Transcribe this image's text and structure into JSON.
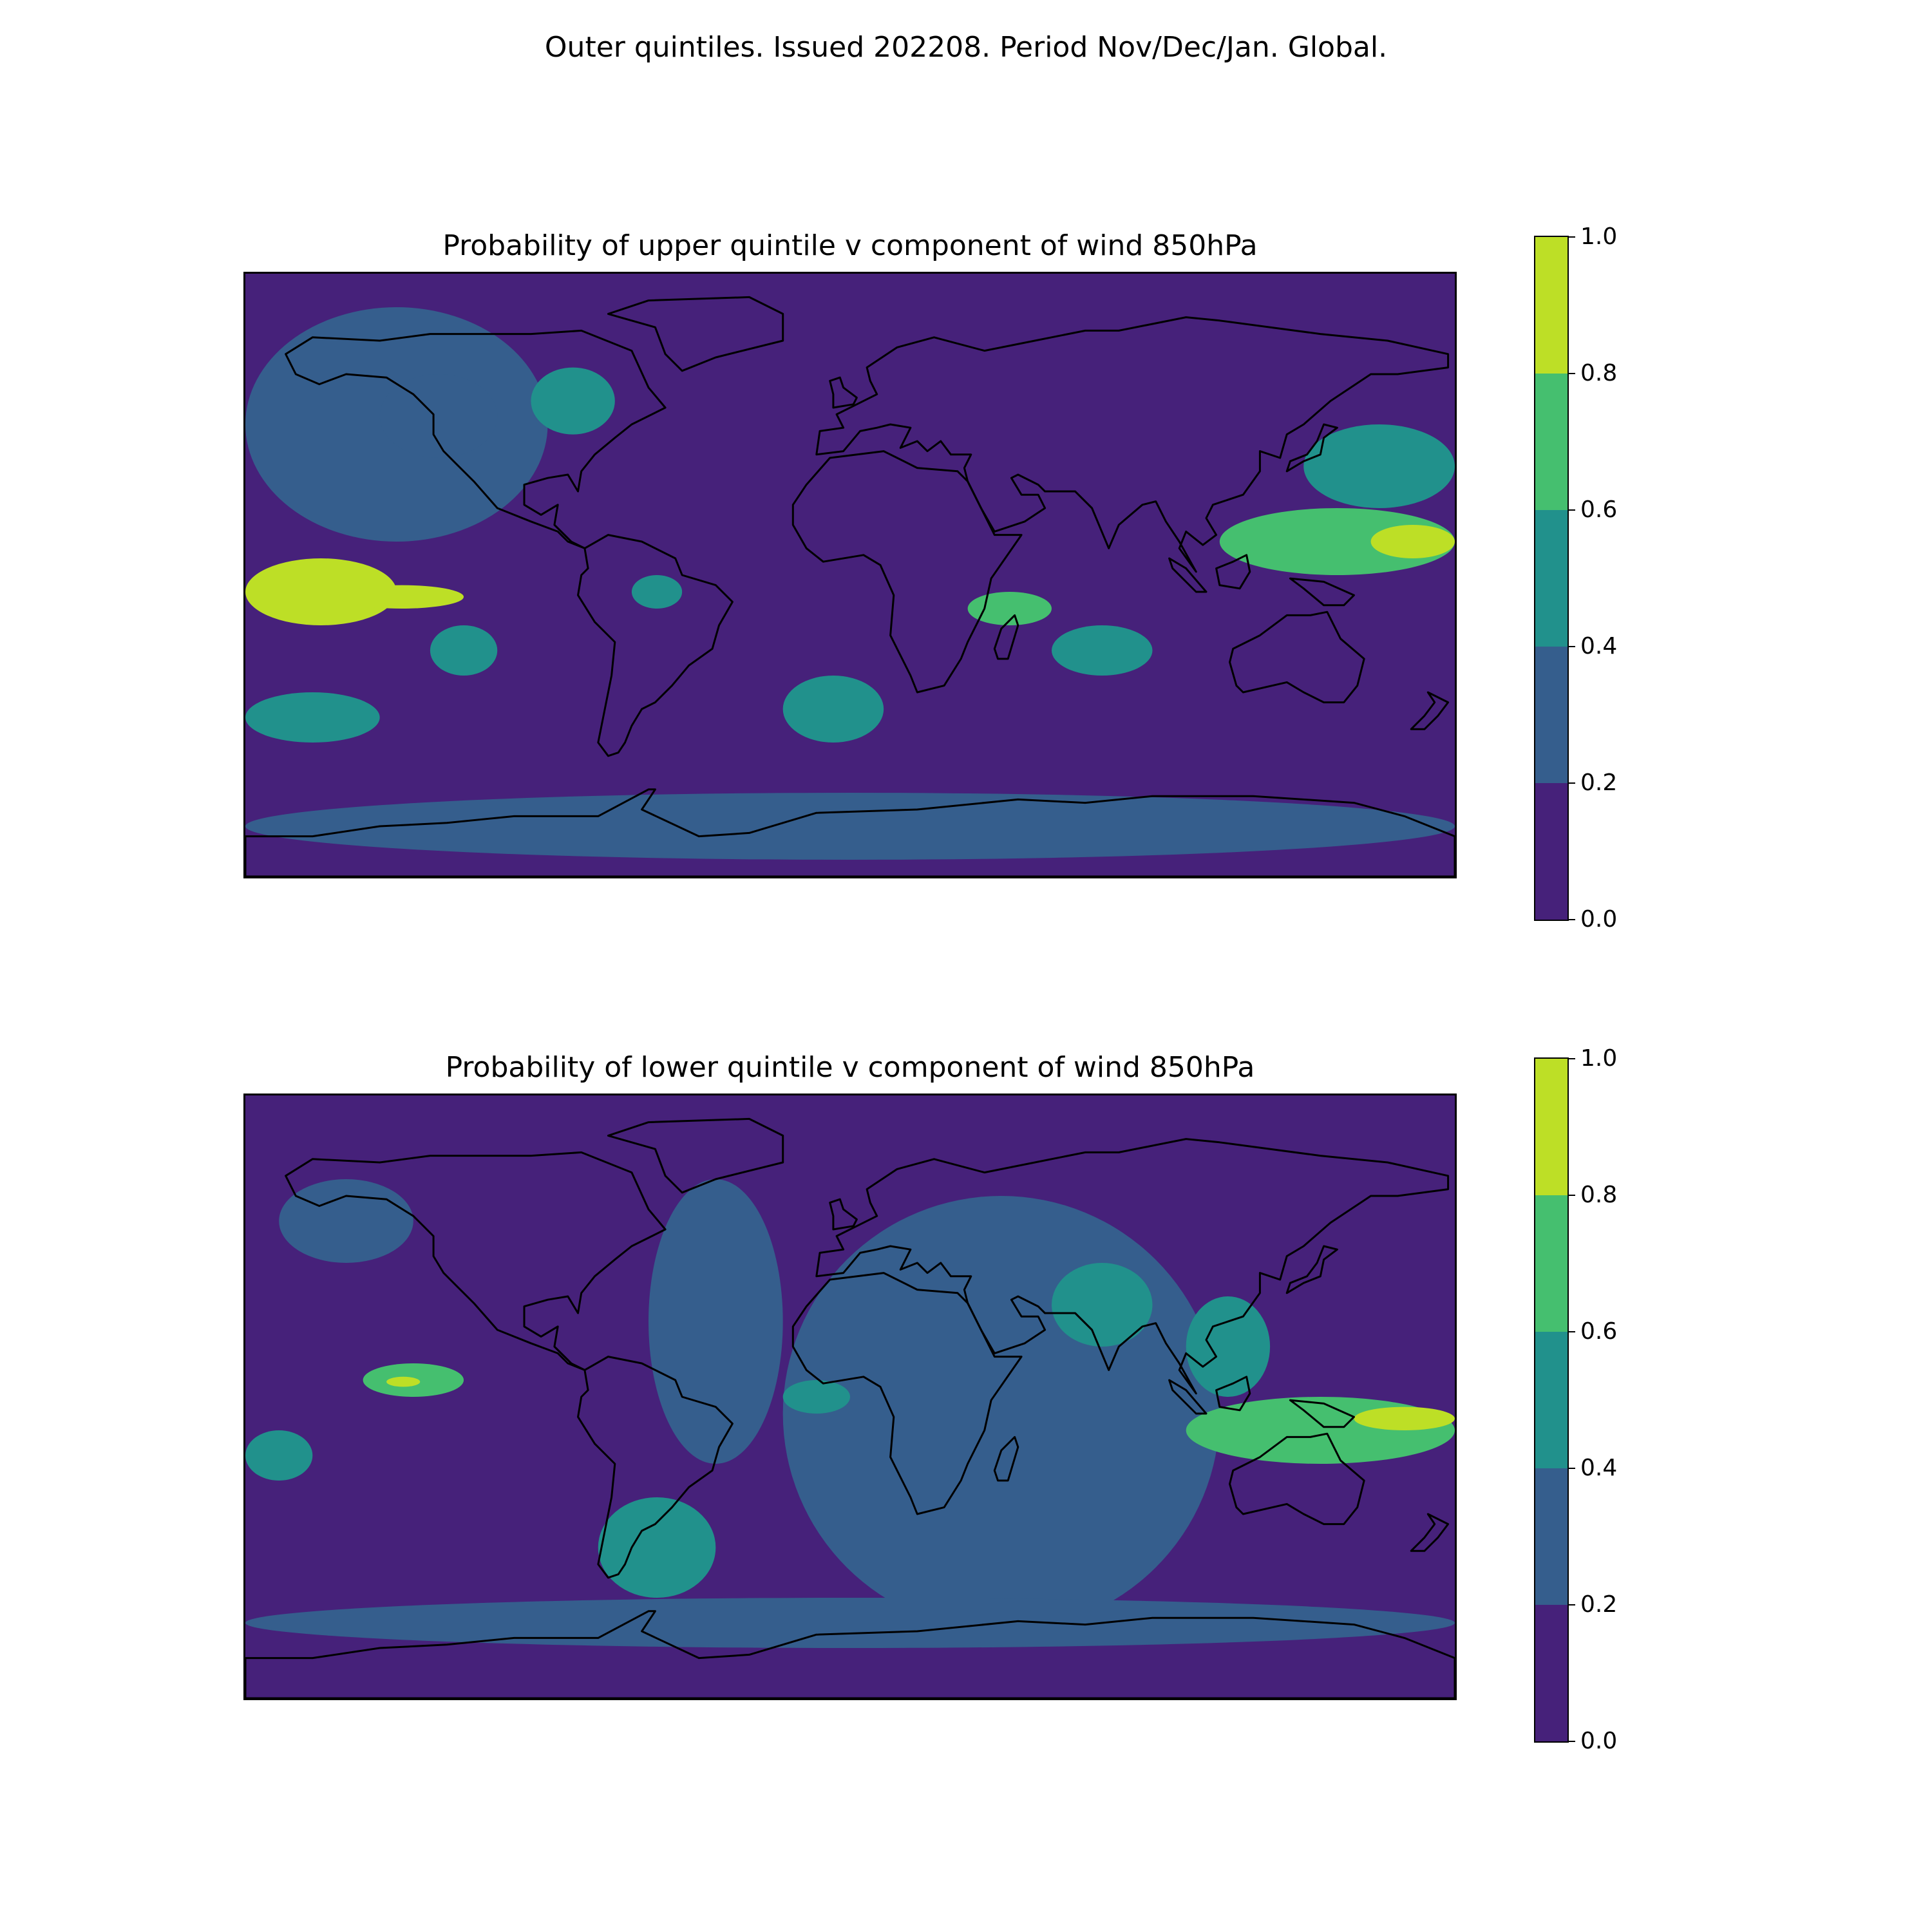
{
  "figure": {
    "suptitle": "Outer quintiles. Issued 202208. Period Nov/Dec/Jan. Global."
  },
  "colors": {
    "levels": [
      "#46217a",
      "#355e8d",
      "#21918c",
      "#45bf6f",
      "#bddf26"
    ],
    "land_outline": "#000000"
  },
  "colorbar": {
    "ticks": [
      "0.0",
      "0.2",
      "0.4",
      "0.6",
      "0.8",
      "1.0"
    ],
    "bounds": [
      0.0,
      0.2,
      0.4,
      0.6,
      0.8,
      1.0
    ]
  },
  "chart_data": [
    {
      "type": "heatmap",
      "title": "Probability of upper quintile v component of wind 850hPa",
      "variable": "v component of wind 850hPa",
      "quintile": "upper",
      "projection": "plate carree, global",
      "xlim": [
        -180,
        180
      ],
      "ylim": [
        -90,
        90
      ],
      "levels": [
        0.0,
        0.2,
        0.4,
        0.6,
        0.8,
        1.0
      ],
      "background_level": 0.1,
      "regions": [
        {
          "name": "north-pacific-band",
          "lon": [
            -180,
            -90
          ],
          "lat": [
            10,
            80
          ],
          "value": 0.3
        },
        {
          "name": "eastern-north-pacific",
          "lon": [
            -140,
            -105
          ],
          "lat": [
            35,
            60
          ],
          "value": 0.3
        },
        {
          "name": "hudson-bay-area",
          "lon": [
            -95,
            -70
          ],
          "lat": [
            42,
            62
          ],
          "value": 0.5
        },
        {
          "name": "tropical-east-pacific-peak",
          "lon": [
            -180,
            -135
          ],
          "lat": [
            -15,
            5
          ],
          "value": 0.85
        },
        {
          "name": "tropical-east-pacific-core",
          "lon": [
            -152,
            -115
          ],
          "lat": [
            -10,
            -3
          ],
          "value": 0.9
        },
        {
          "name": "southeast-pacific",
          "lon": [
            -125,
            -105
          ],
          "lat": [
            -30,
            -15
          ],
          "value": 0.5
        },
        {
          "name": "south-pacific-midlat",
          "lon": [
            -180,
            -140
          ],
          "lat": [
            -50,
            -35
          ],
          "value": 0.5
        },
        {
          "name": "amazon",
          "lon": [
            -65,
            -50
          ],
          "lat": [
            -10,
            0
          ],
          "value": 0.5
        },
        {
          "name": "south-atlantic",
          "lon": [
            -20,
            10
          ],
          "lat": [
            -50,
            -30
          ],
          "value": 0.5
        },
        {
          "name": "madagascar-channel",
          "lon": [
            35,
            60
          ],
          "lat": [
            -15,
            -5
          ],
          "value": 0.7
        },
        {
          "name": "south-indian-ocean",
          "lon": [
            60,
            90
          ],
          "lat": [
            -30,
            -15
          ],
          "value": 0.5
        },
        {
          "name": "northwest-pacific",
          "lon": [
            135,
            180
          ],
          "lat": [
            20,
            45
          ],
          "value": 0.5
        },
        {
          "name": "west-pacific-warm-pool",
          "lon": [
            110,
            180
          ],
          "lat": [
            0,
            20
          ],
          "value": 0.7
        },
        {
          "name": "west-pacific-peak",
          "lon": [
            155,
            180
          ],
          "lat": [
            5,
            15
          ],
          "value": 0.85
        },
        {
          "name": "southern-ocean-band",
          "lon": [
            -180,
            180
          ],
          "lat": [
            -85,
            -65
          ],
          "value": 0.3
        }
      ]
    },
    {
      "type": "heatmap",
      "title": "Probability of lower quintile v component of wind 850hPa",
      "variable": "v component of wind 850hPa",
      "quintile": "lower",
      "projection": "plate carree, global",
      "xlim": [
        -180,
        180
      ],
      "ylim": [
        -90,
        90
      ],
      "levels": [
        0.0,
        0.2,
        0.4,
        0.6,
        0.8,
        1.0
      ],
      "background_level": 0.1,
      "regions": [
        {
          "name": "north-atlantic-band",
          "lon": [
            -60,
            -20
          ],
          "lat": [
            -20,
            65
          ],
          "value": 0.3
        },
        {
          "name": "africa-asia-band",
          "lon": [
            -20,
            110
          ],
          "lat": [
            -70,
            60
          ],
          "value": 0.3
        },
        {
          "name": "alaska-gulf",
          "lon": [
            -170,
            -130
          ],
          "lat": [
            40,
            65
          ],
          "value": 0.3
        },
        {
          "name": "tropical-east-pacific",
          "lon": [
            -145,
            -115
          ],
          "lat": [
            0,
            10
          ],
          "value": 0.7
        },
        {
          "name": "tropical-east-pacific-core",
          "lon": [
            -138,
            -128
          ],
          "lat": [
            3,
            6
          ],
          "value": 0.9
        },
        {
          "name": "gulf-of-guinea",
          "lon": [
            -20,
            0
          ],
          "lat": [
            -5,
            5
          ],
          "value": 0.5
        },
        {
          "name": "india-region",
          "lon": [
            60,
            90
          ],
          "lat": [
            15,
            40
          ],
          "value": 0.5
        },
        {
          "name": "south-china-sea",
          "lon": [
            100,
            125
          ],
          "lat": [
            0,
            30
          ],
          "value": 0.5
        },
        {
          "name": "maritime-continent",
          "lon": [
            100,
            180
          ],
          "lat": [
            -20,
            0
          ],
          "value": 0.7
        },
        {
          "name": "coral-sea-peak",
          "lon": [
            150,
            180
          ],
          "lat": [
            -10,
            -3
          ],
          "value": 0.85
        },
        {
          "name": "patagonia-south-atlantic",
          "lon": [
            -75,
            -40
          ],
          "lat": [
            -60,
            -30
          ],
          "value": 0.5
        },
        {
          "name": "central-pacific-south",
          "lon": [
            -180,
            -160
          ],
          "lat": [
            -25,
            -10
          ],
          "value": 0.5
        },
        {
          "name": "southern-ocean-band",
          "lon": [
            -180,
            180
          ],
          "lat": [
            -75,
            -60
          ],
          "value": 0.3
        }
      ]
    }
  ]
}
